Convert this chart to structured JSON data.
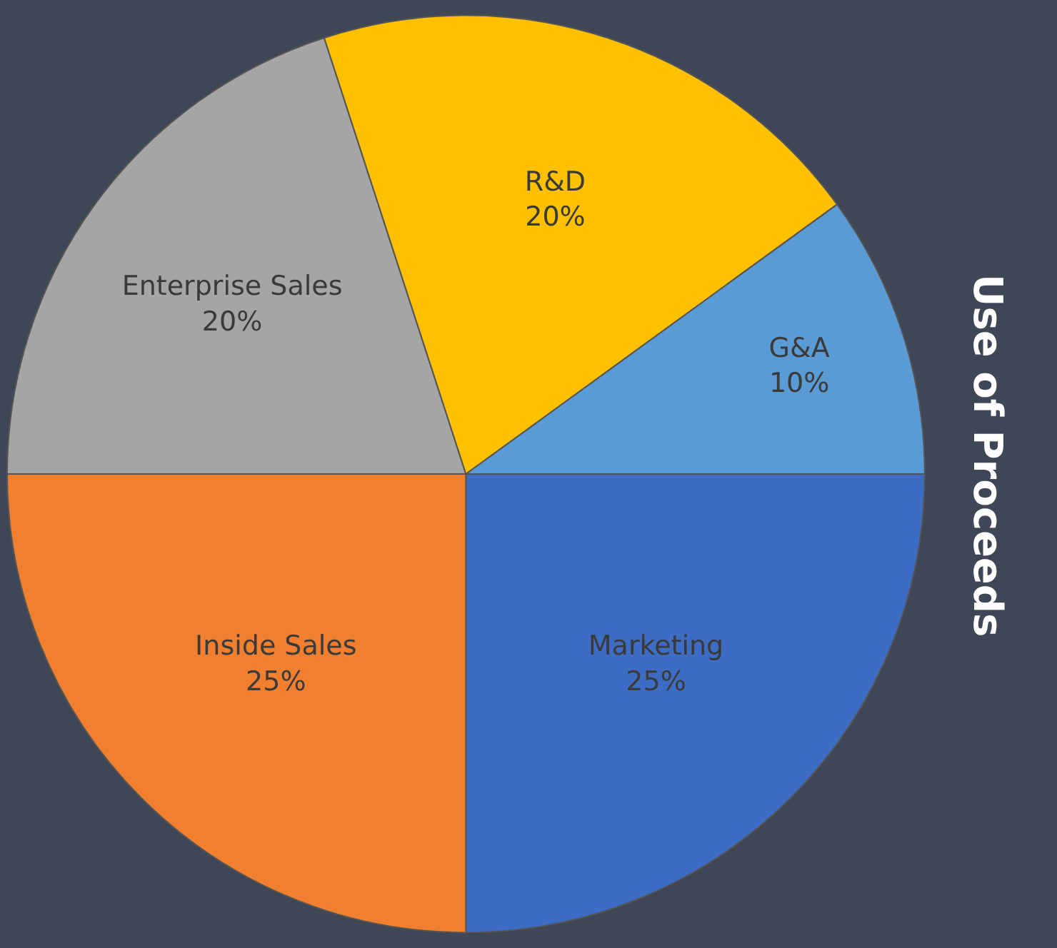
{
  "chart_data": {
    "type": "pie",
    "title": "Use of Proceeds",
    "categories": [
      "Marketing",
      "Inside Sales",
      "Enterprise Sales",
      "R&D",
      "G&A"
    ],
    "values": [
      25,
      25,
      20,
      20,
      10
    ],
    "value_labels": [
      "25%",
      "25%",
      "20%",
      "20%",
      "10%"
    ],
    "colors": [
      "#3d6cc4",
      "#f07f30",
      "#a5a5a5",
      "#ffc000",
      "#5b9bd5"
    ],
    "legend": false
  }
}
